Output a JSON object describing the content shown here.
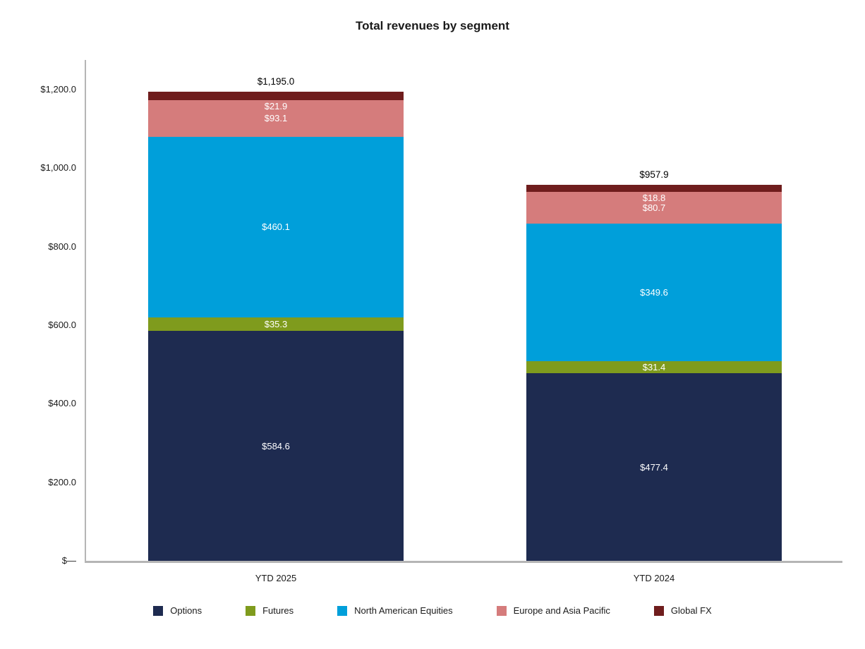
{
  "title": "Total revenues by segment",
  "chart_data": {
    "type": "bar",
    "stacked": true,
    "title": "Total revenues by segment",
    "xlabel": "",
    "ylabel": "",
    "categories": [
      "YTD 2025",
      "YTD 2024"
    ],
    "series": [
      {
        "name": "Options",
        "color": "#1E2B50",
        "values": [
          584.6,
          477.4
        ]
      },
      {
        "name": "Futures",
        "color": "#7F9B1D",
        "values": [
          35.3,
          31.4
        ]
      },
      {
        "name": "North American Equities",
        "color": "#009FDA",
        "values": [
          460.1,
          349.6
        ]
      },
      {
        "name": "Europe and Asia Pacific",
        "color": "#D57C7C",
        "values": [
          93.1,
          80.7
        ]
      },
      {
        "name": "Global FX",
        "color": "#6F1D1D",
        "values": [
          21.9,
          18.8
        ]
      }
    ],
    "totals": [
      1195.0,
      957.9
    ],
    "total_labels": [
      "$1,195.0",
      "$957.9"
    ],
    "segment_labels": [
      [
        "$584.6",
        "$35.3",
        "$460.1",
        "$93.1",
        "$21.9"
      ],
      [
        "$477.4",
        "$31.4",
        "$349.6",
        "$80.7",
        "$18.8"
      ]
    ],
    "y_ticks": [
      {
        "value": 0,
        "label": "$—"
      },
      {
        "value": 200,
        "label": "$200.0"
      },
      {
        "value": 400,
        "label": "$400.0"
      },
      {
        "value": 600,
        "label": "$600.0"
      },
      {
        "value": 800,
        "label": "$800.0"
      },
      {
        "value": 1000,
        "label": "$1,000.0"
      },
      {
        "value": 1200,
        "label": "$1,200.0"
      }
    ],
    "ylim": [
      0,
      1275
    ],
    "grid": false,
    "legend_position": "bottom"
  }
}
